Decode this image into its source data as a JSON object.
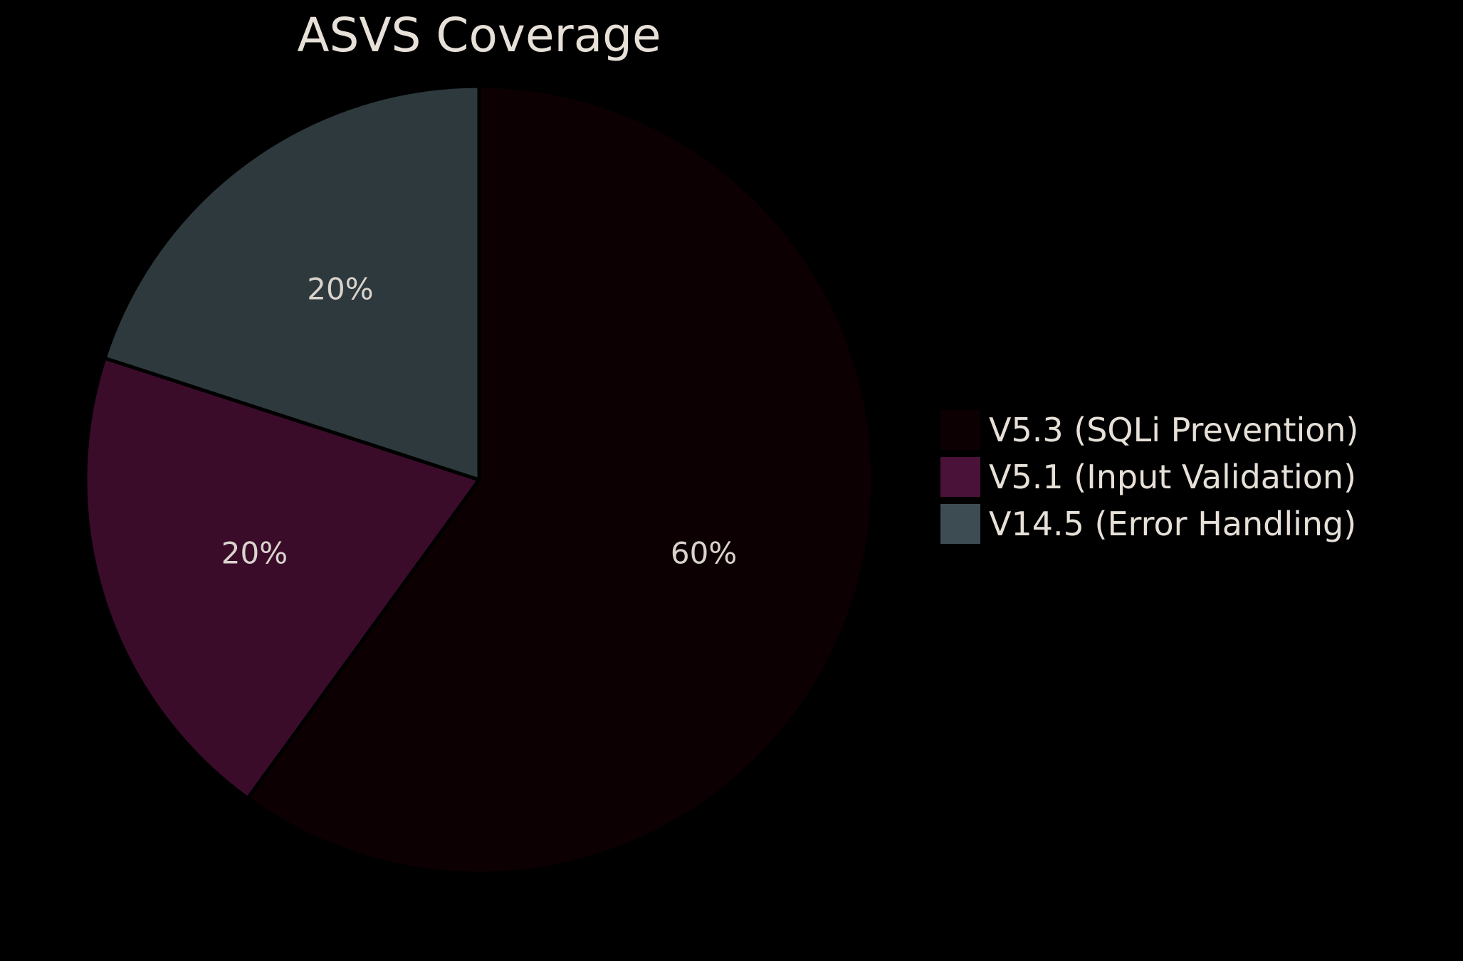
{
  "chart_data": {
    "type": "pie",
    "title": "ASVS Coverage",
    "categories": [
      "V5.3 (SQLi Prevention)",
      "V5.1 (Input Validation)",
      "V14.5 (Error Handling)"
    ],
    "values": [
      60,
      20,
      20
    ],
    "value_labels": [
      "60%",
      "20%",
      "20%"
    ],
    "colors": [
      "#0c0002",
      "#3a0c2a",
      "#2d393d"
    ],
    "legend_colors": [
      "#0c0002",
      "#4a1238",
      "#3c4c52"
    ],
    "start_angle": "top",
    "direction": "clockwise",
    "legend_position": "right"
  }
}
